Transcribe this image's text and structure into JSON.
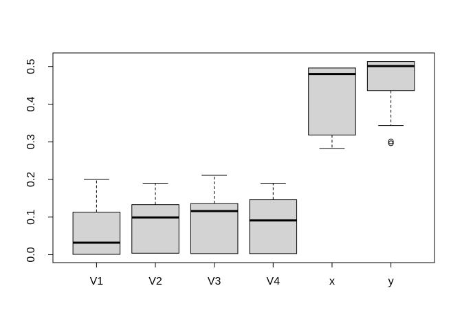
{
  "chart_data": {
    "type": "boxplot",
    "title": "",
    "xlabel": "",
    "ylabel": "",
    "categories": [
      "V1",
      "V2",
      "V3",
      "V4",
      "x",
      "y"
    ],
    "ylim": [
      -0.021,
      0.536
    ],
    "yticks": [
      0.0,
      0.1,
      0.2,
      0.3,
      0.4,
      0.5
    ],
    "ytick_labels": [
      "0.0",
      "0.1",
      "0.2",
      "0.3",
      "0.4",
      "0.5"
    ],
    "grid": false,
    "legend": null,
    "background": "#ffffff",
    "box_fill": "#d3d3d3",
    "box_stroke": "#000000",
    "median_color": "#000000",
    "series": [
      {
        "name": "V1",
        "whisker_low": 0.001,
        "q1": 0.001,
        "median": 0.032,
        "q3": 0.113,
        "whisker_high": 0.2,
        "outliers": []
      },
      {
        "name": "V2",
        "whisker_low": 0.004,
        "q1": 0.004,
        "median": 0.099,
        "q3": 0.133,
        "whisker_high": 0.19,
        "outliers": []
      },
      {
        "name": "V3",
        "whisker_low": 0.003,
        "q1": 0.003,
        "median": 0.116,
        "q3": 0.136,
        "whisker_high": 0.211,
        "outliers": []
      },
      {
        "name": "V4",
        "whisker_low": 0.003,
        "q1": 0.003,
        "median": 0.091,
        "q3": 0.146,
        "whisker_high": 0.19,
        "outliers": []
      },
      {
        "name": "x",
        "whisker_low": 0.282,
        "q1": 0.318,
        "median": 0.48,
        "q3": 0.496,
        "whisker_high": 0.496,
        "outliers": []
      },
      {
        "name": "y",
        "whisker_low": 0.343,
        "q1": 0.436,
        "median": 0.501,
        "q3": 0.513,
        "whisker_high": 0.513,
        "outliers": [
          0.296,
          0.301
        ]
      }
    ]
  }
}
